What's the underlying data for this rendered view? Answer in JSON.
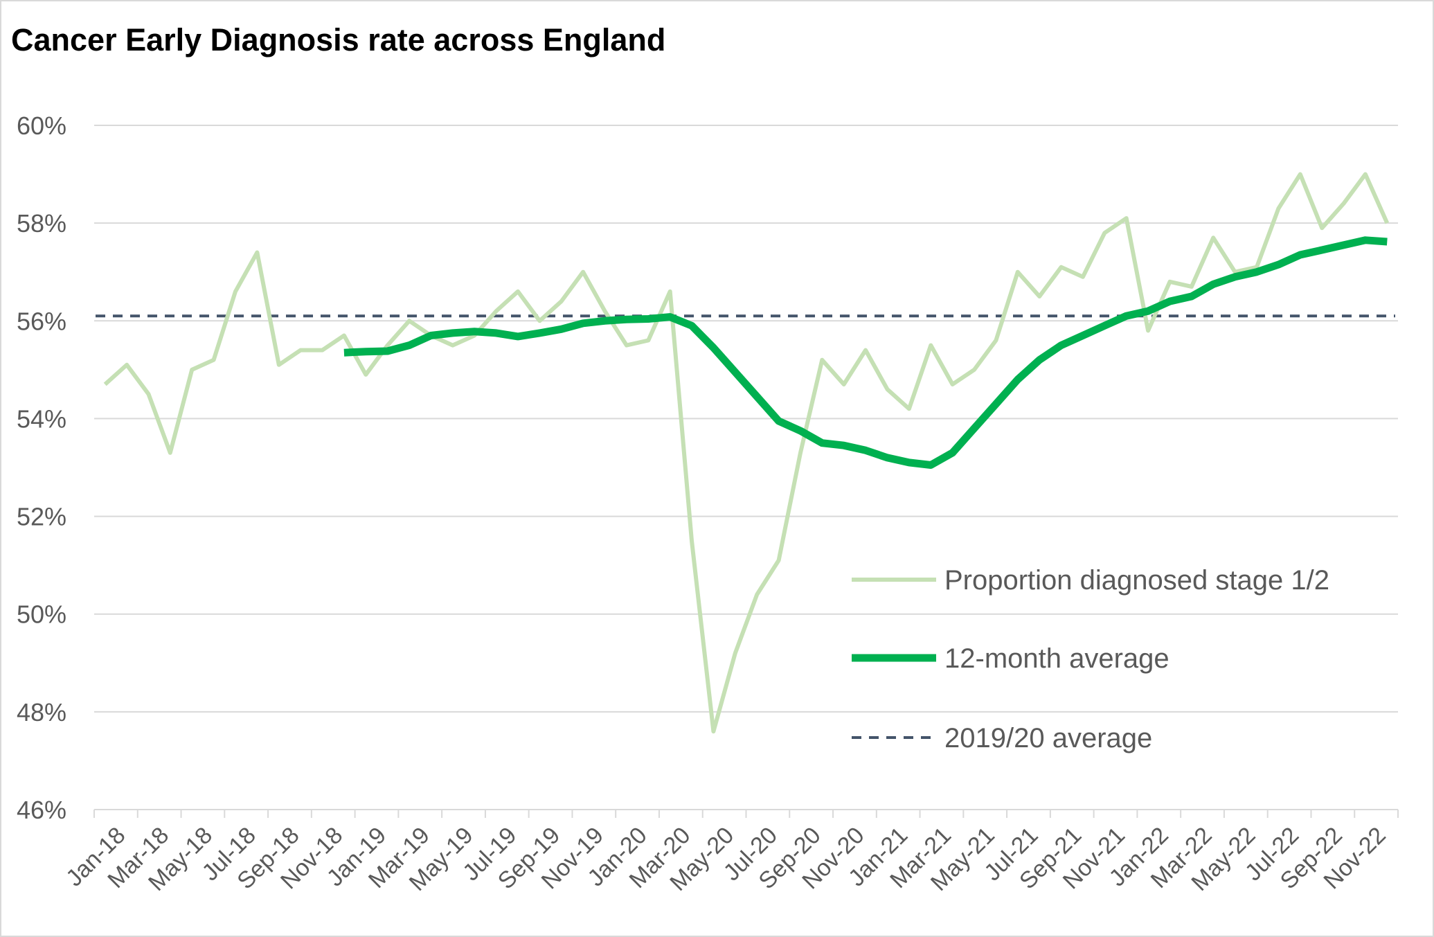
{
  "chart_data": {
    "type": "line",
    "title": "Cancer Early Diagnosis rate across England",
    "xlabel": "",
    "ylabel": "",
    "ylim": [
      46,
      60
    ],
    "y_ticks": [
      "46%",
      "48%",
      "50%",
      "52%",
      "54%",
      "56%",
      "58%",
      "60%"
    ],
    "y_tick_values": [
      46,
      48,
      50,
      52,
      54,
      56,
      58,
      60
    ],
    "grid": "horizontal",
    "legend_position": "right-inside",
    "categories": [
      "Jan-18",
      "Feb-18",
      "Mar-18",
      "Apr-18",
      "May-18",
      "Jun-18",
      "Jul-18",
      "Aug-18",
      "Sep-18",
      "Oct-18",
      "Nov-18",
      "Dec-18",
      "Jan-19",
      "Feb-19",
      "Mar-19",
      "Apr-19",
      "May-19",
      "Jun-19",
      "Jul-19",
      "Aug-19",
      "Sep-19",
      "Oct-19",
      "Nov-19",
      "Dec-19",
      "Jan-20",
      "Feb-20",
      "Mar-20",
      "Apr-20",
      "May-20",
      "Jun-20",
      "Jul-20",
      "Aug-20",
      "Sep-20",
      "Oct-20",
      "Nov-20",
      "Dec-20",
      "Jan-21",
      "Feb-21",
      "Mar-21",
      "Apr-21",
      "May-21",
      "Jun-21",
      "Jul-21",
      "Aug-21",
      "Sep-21",
      "Oct-21",
      "Nov-21",
      "Dec-21",
      "Jan-22",
      "Feb-22",
      "Mar-22",
      "Apr-22",
      "May-22",
      "Jun-22",
      "Jul-22",
      "Aug-22",
      "Sep-22",
      "Oct-22",
      "Nov-22",
      "Dec-22"
    ],
    "x_tick_labels": [
      "Jan-18",
      "Mar-18",
      "May-18",
      "Jul-18",
      "Sep-18",
      "Nov-18",
      "Jan-19",
      "Mar-19",
      "May-19",
      "Jul-19",
      "Sep-19",
      "Nov-19",
      "Jan-20",
      "Mar-20",
      "May-20",
      "Jul-20",
      "Sep-20",
      "Nov-20",
      "Jan-21",
      "Mar-21",
      "May-21",
      "Jul-21",
      "Sep-21",
      "Nov-21",
      "Jan-22",
      "Mar-22",
      "May-22",
      "Jul-22",
      "Sep-22",
      "Nov-22"
    ],
    "series": [
      {
        "name": "Proportion diagnosed stage 1/2",
        "color": "#c5e0b4",
        "style": "solid-thin",
        "values": [
          54.7,
          55.1,
          54.5,
          53.3,
          55.0,
          55.2,
          56.6,
          57.4,
          55.1,
          55.4,
          55.4,
          55.7,
          54.9,
          55.5,
          56.0,
          55.7,
          55.5,
          55.7,
          56.2,
          56.6,
          56.0,
          56.4,
          57.0,
          56.2,
          55.5,
          55.6,
          56.6,
          51.5,
          47.6,
          49.2,
          50.4,
          51.1,
          53.3,
          55.2,
          54.7,
          55.4,
          54.6,
          54.2,
          55.5,
          54.7,
          55.0,
          55.6,
          57.0,
          56.5,
          57.1,
          56.9,
          57.8,
          58.1,
          55.8,
          56.8,
          56.7,
          57.7,
          57.0,
          57.1,
          58.3,
          59.0,
          57.9,
          58.4,
          59.0,
          58.0
        ]
      },
      {
        "name": "12-month average",
        "color": "#00b050",
        "style": "solid-thick",
        "values": [
          null,
          null,
          null,
          null,
          null,
          null,
          null,
          null,
          null,
          null,
          null,
          55.35,
          55.37,
          55.38,
          55.5,
          55.7,
          55.75,
          55.78,
          55.75,
          55.68,
          55.75,
          55.83,
          55.95,
          56.0,
          56.03,
          56.04,
          56.08,
          55.9,
          55.45,
          54.95,
          54.45,
          53.95,
          53.75,
          53.5,
          53.45,
          53.35,
          53.2,
          53.1,
          53.05,
          53.3,
          53.8,
          54.3,
          54.8,
          55.2,
          55.5,
          55.7,
          55.9,
          56.1,
          56.2,
          56.4,
          56.5,
          56.75,
          56.9,
          57.0,
          57.15,
          57.35,
          57.45,
          57.55,
          57.65,
          57.62
        ]
      },
      {
        "name": "2019/20 average",
        "color": "#44546a",
        "style": "dashed",
        "values": "constant",
        "constant_value": 56.1
      }
    ]
  }
}
